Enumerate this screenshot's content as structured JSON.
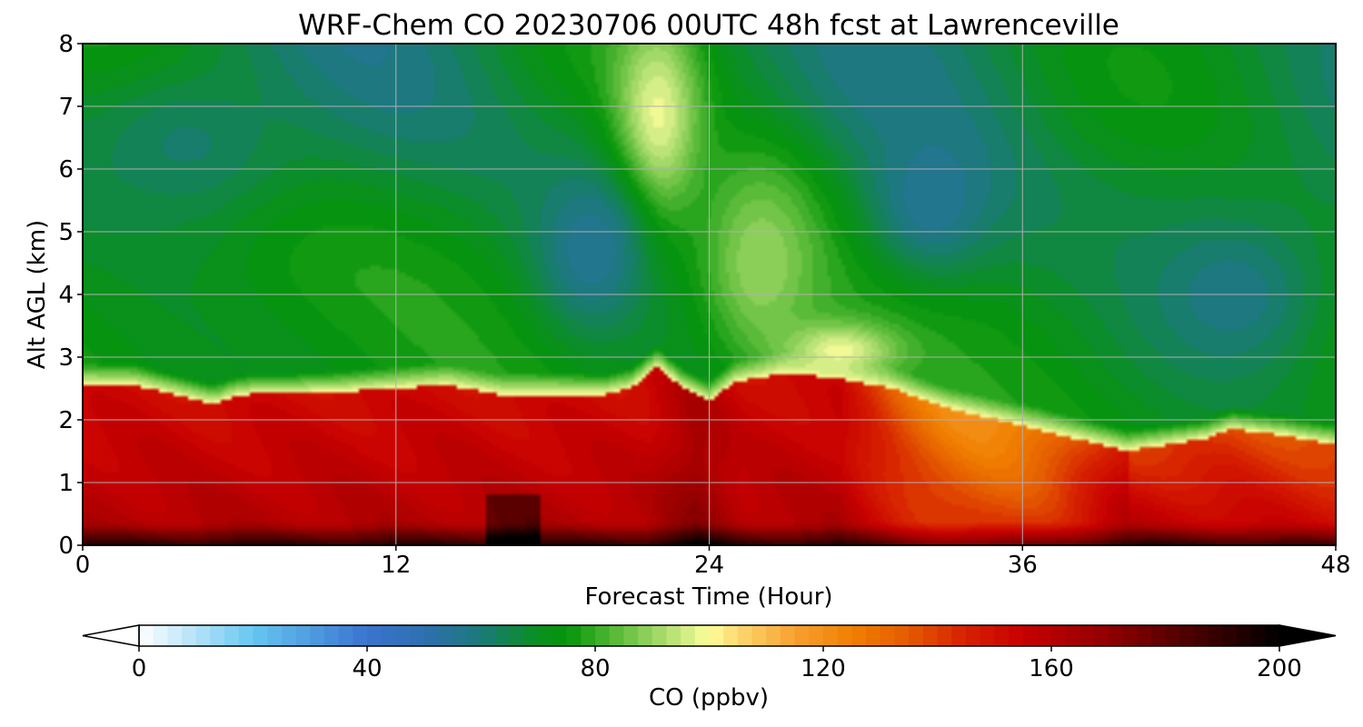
{
  "chart_data": {
    "type": "heatmap",
    "title": "WRF-Chem CO  20230706 00UTC 48h fcst at Lawrenceville",
    "xlabel": "Forecast Time (Hour)",
    "ylabel": "Alt AGL (km)",
    "xlim": [
      0,
      48
    ],
    "ylim": [
      0,
      8
    ],
    "xticks": [
      0,
      12,
      24,
      36,
      48
    ],
    "yticks": [
      0,
      1,
      2,
      3,
      4,
      5,
      6,
      7,
      8
    ],
    "grid": true,
    "colorbar": {
      "label": "CO  (ppbv)",
      "range": [
        0,
        200
      ],
      "ticks": [
        0,
        40,
        80,
        120,
        160,
        200
      ],
      "extend": "both",
      "colormap_stops": [
        {
          "v": 0,
          "c": "#ffffff"
        },
        {
          "v": 20,
          "c": "#66c6f0"
        },
        {
          "v": 40,
          "c": "#3a73d0"
        },
        {
          "v": 50,
          "c": "#2e6fb0"
        },
        {
          "v": 60,
          "c": "#1a7a78"
        },
        {
          "v": 70,
          "c": "#0a9020"
        },
        {
          "v": 75,
          "c": "#05950a"
        },
        {
          "v": 85,
          "c": "#66c040"
        },
        {
          "v": 95,
          "c": "#c8e880"
        },
        {
          "v": 100,
          "c": "#ffff9a"
        },
        {
          "v": 105,
          "c": "#fcd870"
        },
        {
          "v": 115,
          "c": "#f8a030"
        },
        {
          "v": 125,
          "c": "#f08000"
        },
        {
          "v": 135,
          "c": "#e45a00"
        },
        {
          "v": 145,
          "c": "#d62000"
        },
        {
          "v": 155,
          "c": "#c80000"
        },
        {
          "v": 170,
          "c": "#900000"
        },
        {
          "v": 190,
          "c": "#300000"
        },
        {
          "v": 200,
          "c": "#000000"
        }
      ]
    },
    "boundary_layer_top_km": {
      "x": [
        0,
        2,
        5,
        6,
        10,
        12,
        14,
        16,
        20,
        21,
        22,
        23,
        24,
        25,
        27,
        29,
        31,
        33,
        36,
        40,
        43,
        44,
        46,
        48
      ],
      "y": [
        2.55,
        2.55,
        2.25,
        2.4,
        2.45,
        2.5,
        2.55,
        2.4,
        2.4,
        2.5,
        2.85,
        2.5,
        2.3,
        2.6,
        2.75,
        2.65,
        2.5,
        2.2,
        1.9,
        1.5,
        1.7,
        1.85,
        1.75,
        1.6
      ]
    },
    "field_features": [
      {
        "kind": "plume",
        "x": 22.0,
        "y": 6.8,
        "sx": 1.6,
        "sy": 1.6,
        "value": 99
      },
      {
        "kind": "plume",
        "x": 26.0,
        "y": 4.5,
        "sx": 2.2,
        "sy": 1.6,
        "value": 90
      },
      {
        "kind": "plume",
        "x": 29.0,
        "y": 3.1,
        "sx": 2.2,
        "sy": 0.45,
        "value": 99
      },
      {
        "kind": "minimum",
        "x": 19.5,
        "y": 4.7,
        "sx": 2.2,
        "sy": 1.3,
        "value": 55
      },
      {
        "kind": "minimum",
        "x": 32.5,
        "y": 5.5,
        "sx": 2.5,
        "sy": 1.2,
        "value": 55
      },
      {
        "kind": "minimum",
        "x": 44.0,
        "y": 4.0,
        "sx": 4.0,
        "sy": 1.5,
        "value": 58
      },
      {
        "kind": "minimum",
        "x": 4.0,
        "y": 6.4,
        "sx": 4.0,
        "sy": 1.2,
        "value": 62
      }
    ]
  }
}
